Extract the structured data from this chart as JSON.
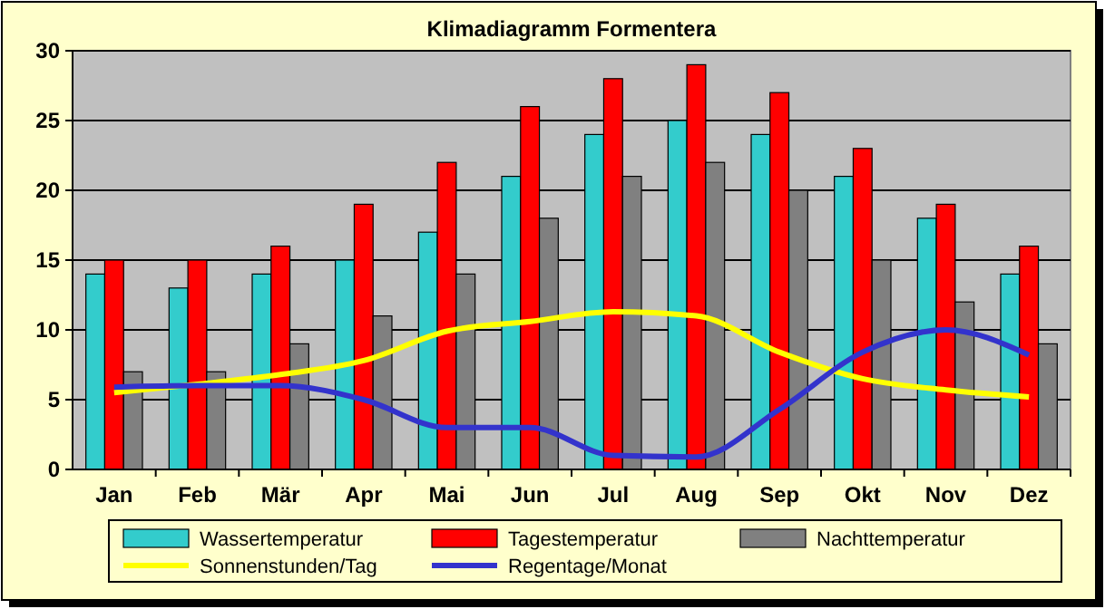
{
  "chart_data": {
    "type": "bar",
    "title": "Klimadiagramm Formentera",
    "categories": [
      "Jan",
      "Feb",
      "Mär",
      "Apr",
      "Mai",
      "Jun",
      "Jul",
      "Aug",
      "Sep",
      "Okt",
      "Nov",
      "Dez"
    ],
    "series": [
      {
        "name": "Wassertemperatur",
        "color": "#33cccc",
        "values": [
          14,
          13,
          14,
          15,
          17,
          21,
          24,
          25,
          24,
          21,
          18,
          14
        ]
      },
      {
        "name": "Tagestemperatur",
        "color": "#ff0000",
        "values": [
          15,
          15,
          16,
          19,
          22,
          26,
          28,
          29,
          27,
          23,
          19,
          16
        ]
      },
      {
        "name": "Nachttemperatur",
        "color": "#808080",
        "values": [
          7,
          7,
          9,
          11,
          14,
          18,
          21,
          22,
          20,
          15,
          12,
          9
        ]
      },
      {
        "name": "Sonnenstunden/Tag",
        "type": "line",
        "color": "#ffff00",
        "values": [
          5.5,
          6.1,
          6.8,
          7.8,
          9.9,
          10.6,
          11.3,
          11.0,
          8.4,
          6.5,
          5.7,
          5.2
        ]
      },
      {
        "name": "Regentage/Monat",
        "type": "line",
        "color": "#3333cc",
        "values": [
          5.9,
          6.0,
          6.0,
          5.0,
          3.0,
          3.0,
          1.0,
          0.9,
          4.3,
          8.4,
          10.0,
          8.2
        ]
      }
    ],
    "ylim": [
      0,
      30
    ],
    "yticks": [
      0,
      5,
      10,
      15,
      20,
      25,
      30
    ],
    "grid": "y",
    "legend": "bottom",
    "marker": "none",
    "line_style": "solid"
  }
}
